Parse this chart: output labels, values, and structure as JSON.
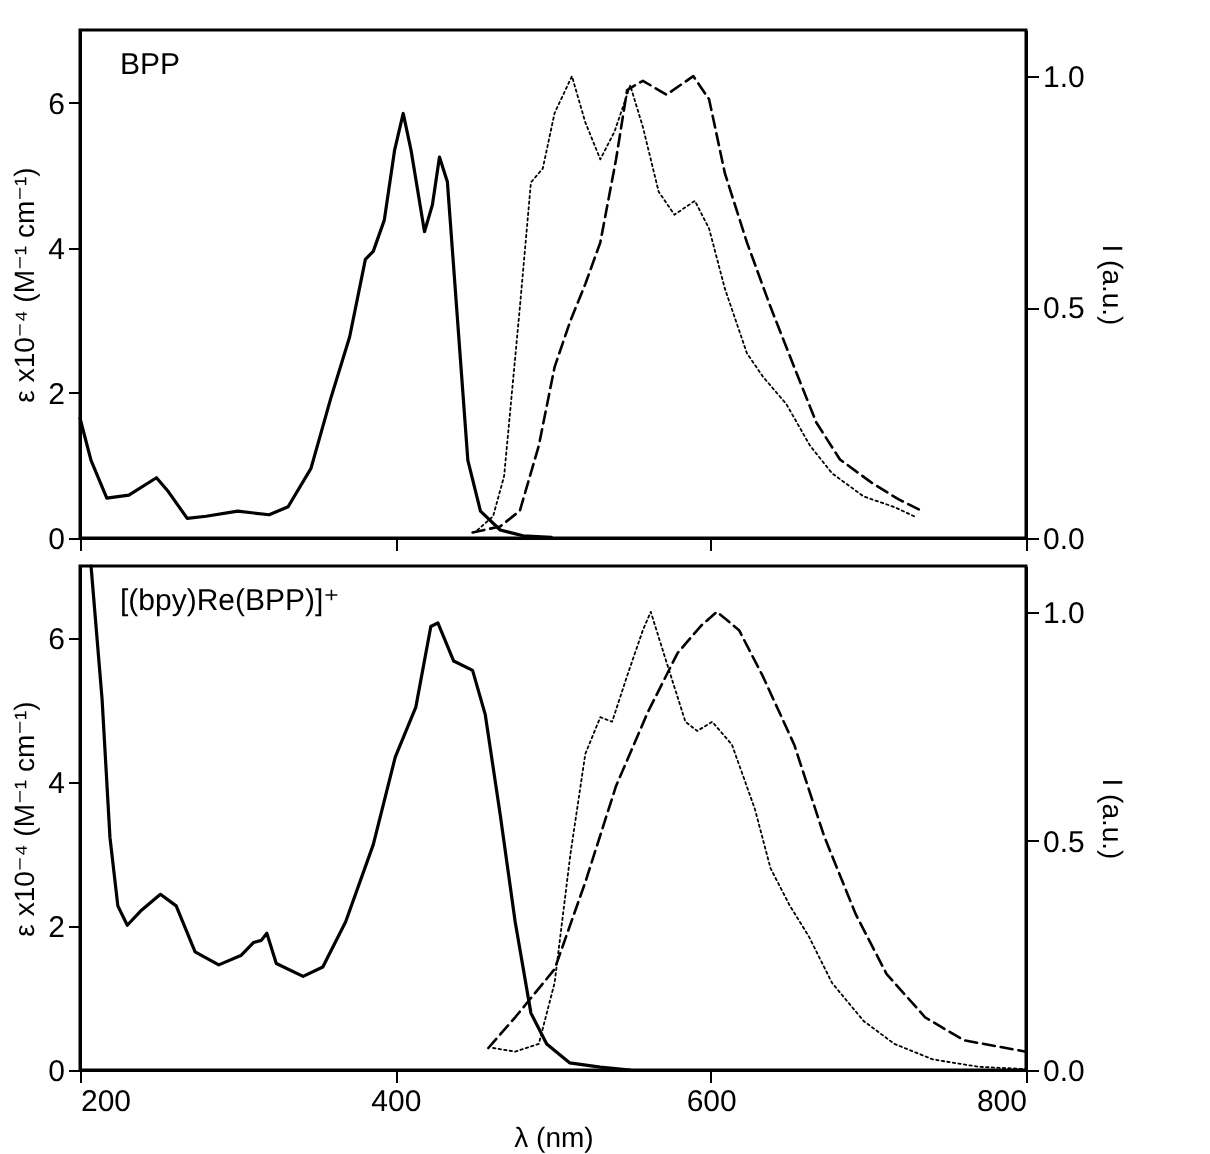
{
  "chart_data": [
    {
      "type": "line",
      "xlim": [
        200,
        800
      ],
      "xticks": [
        200,
        400,
        600,
        800
      ],
      "ylim": [
        0,
        7
      ],
      "yticks": [
        0,
        2,
        4,
        6
      ],
      "y2lim": [
        0,
        1.1
      ],
      "y2ticks": [
        {
          "value": 0,
          "label": "0.0"
        },
        {
          "value": 0.5,
          "label": "0.5"
        },
        {
          "value": 1,
          "label": "1.0"
        }
      ],
      "ylabel": "ε x10⁻⁴ (M⁻¹ cm⁻¹)",
      "y2label": "I (a.u.)",
      "tick_labels": "y",
      "annotations": [
        "BPP"
      ],
      "series": [
        {
          "color": "#000000",
          "line_style": "solid",
          "x": [
            200,
            207,
            217,
            231,
            248.5,
            256,
            268,
            280,
            300,
            320,
            332,
            346.5,
            359,
            371,
            381,
            386,
            393,
            399.5,
            405,
            410,
            418.5,
            423.5,
            428,
            433,
            439.5,
            446,
            454,
            466.5,
            481,
            499
          ],
          "values": [
            1.65,
            1.07,
            0.55,
            0.59,
            0.83,
            0.64,
            0.27,
            0.3,
            0.37,
            0.32,
            0.43,
            0.96,
            1.92,
            2.77,
            3.84,
            3.95,
            4.38,
            5.34,
            5.85,
            5.34,
            4.22,
            4.59,
            5.25,
            4.91,
            2.99,
            1.07,
            0.37,
            0.11,
            0.03,
            0.01
          ]
        },
        {
          "color": "#000000",
          "line_style": "dotted",
          "axis": "y2",
          "x": [
            452,
            462,
            469,
            479,
            486,
            493.5,
            501,
            512,
            520.5,
            530,
            539,
            549,
            557,
            567,
            577,
            590,
            599,
            609,
            623,
            633,
            648,
            663,
            677,
            697,
            716.5,
            729
          ],
          "values": [
            0.017,
            0.047,
            0.134,
            0.5,
            0.77,
            0.8,
            0.92,
            1,
            0.9,
            0.82,
            0.88,
            0.98,
            0.89,
            0.75,
            0.7,
            0.73,
            0.67,
            0.54,
            0.4,
            0.35,
            0.29,
            0.2,
            0.14,
            0.09,
            0.067,
            0.047
          ]
        },
        {
          "color": "#000000",
          "line_style": "dashed",
          "axis": "y2",
          "x": [
            449,
            466.5,
            479,
            491,
            501,
            511,
            520.5,
            530,
            540,
            547,
            557,
            572,
            589,
            599,
            609,
            623,
            638,
            653,
            667,
            682,
            702,
            719,
            732
          ],
          "values": [
            0.012,
            0.025,
            0.059,
            0.2,
            0.37,
            0.47,
            0.55,
            0.64,
            0.82,
            0.97,
            0.99,
            0.96,
            1,
            0.95,
            0.79,
            0.64,
            0.5,
            0.37,
            0.25,
            0.17,
            0.12,
            0.084,
            0.062
          ]
        }
      ]
    },
    {
      "type": "line",
      "xlim": [
        200,
        800
      ],
      "xticks": [
        200,
        400,
        600,
        800
      ],
      "ylim": [
        0,
        7
      ],
      "yticks": [
        0,
        2,
        4,
        6
      ],
      "y2lim": [
        0,
        1.1
      ],
      "y2ticks": [
        {
          "value": 0,
          "label": "0.0"
        },
        {
          "value": 0.5,
          "label": "0.5"
        },
        {
          "value": 1,
          "label": "1.0"
        }
      ],
      "xlabel": "λ (nm)",
      "ylabel": "ε x10⁻⁴ (M⁻¹ cm⁻¹)",
      "y2label": "I (a.u.)",
      "annotations": [
        "[(bpy)Re(BPP)]⁺"
      ],
      "series": [
        {
          "color": "#000000",
          "line_style": "solid",
          "x": [
            207,
            214,
            219,
            224,
            230,
            239,
            251,
            261,
            273,
            288,
            302,
            310,
            315,
            318.5,
            324.5,
            341.5,
            354,
            368.5,
            386,
            400,
            413,
            422.5,
            427,
            437,
            449,
            457,
            466.5,
            476,
            486,
            496,
            510.5,
            530,
            549
          ],
          "values": [
            7,
            5.15,
            3.23,
            2.28,
            2.01,
            2.22,
            2.44,
            2.28,
            1.64,
            1.46,
            1.59,
            1.77,
            1.8,
            1.9,
            1.48,
            1.3,
            1.43,
            2.06,
            3.13,
            4.35,
            5.04,
            6.16,
            6.21,
            5.68,
            5.55,
            4.94,
            3.55,
            2.06,
            0.79,
            0.36,
            0.1,
            0.04,
            0
          ]
        },
        {
          "color": "#000000",
          "line_style": "dotted",
          "axis": "y2",
          "x": [
            462,
            476,
            491,
            501,
            511,
            520.5,
            530,
            537.5,
            547,
            557,
            562,
            572,
            584,
            591.5,
            601,
            613.5,
            628,
            638,
            650,
            662.5,
            677,
            697,
            716.5,
            741,
            770,
            800
          ],
          "values": [
            0.048,
            0.04,
            0.057,
            0.19,
            0.47,
            0.69,
            0.77,
            0.76,
            0.86,
            0.96,
            1,
            0.89,
            0.76,
            0.74,
            0.76,
            0.71,
            0.57,
            0.44,
            0.36,
            0.29,
            0.19,
            0.107,
            0.057,
            0.023,
            0.007,
            0.002
          ]
        },
        {
          "color": "#000000",
          "line_style": "dashed",
          "axis": "y2",
          "x": [
            459,
            476,
            501,
            520.5,
            540,
            560,
            579,
            594,
            604,
            618,
            633,
            653,
            672,
            692,
            711.5,
            736,
            760.5,
            800
          ],
          "values": [
            0.048,
            0.115,
            0.22,
            0.41,
            0.62,
            0.78,
            0.91,
            0.97,
            1,
            0.96,
            0.86,
            0.71,
            0.51,
            0.34,
            0.21,
            0.115,
            0.065,
            0.04
          ]
        }
      ]
    }
  ]
}
